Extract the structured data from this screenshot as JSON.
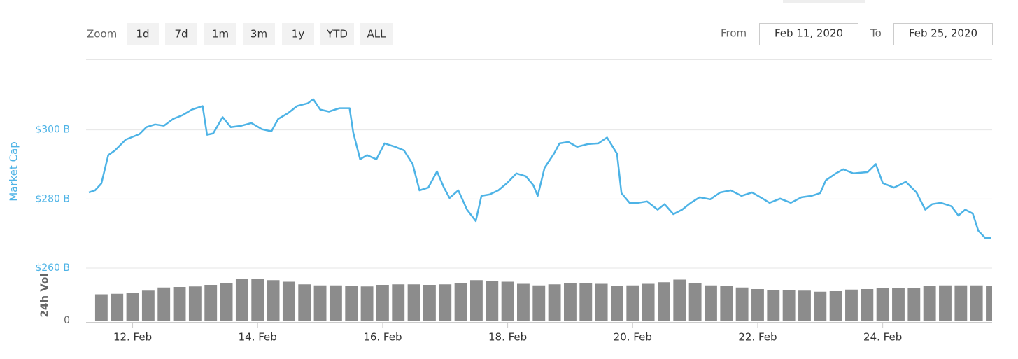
{
  "controls": {
    "zoom_label": "Zoom",
    "zoom_buttons": [
      "1d",
      "7d",
      "1m",
      "3m",
      "1y",
      "YTD",
      "ALL"
    ],
    "from_label": "From",
    "from_value": "Feb 11, 2020",
    "to_label": "To",
    "to_value": "Feb 25, 2020"
  },
  "chart_data": [
    {
      "type": "line",
      "ylabel": "Market Cap",
      "color": "#4db3e6",
      "grid": true,
      "xlim": [
        11.3,
        25.75
      ],
      "ylim": [
        260,
        320
      ],
      "yticks": [
        {
          "value": 260,
          "label": "$260 B"
        },
        {
          "value": 280,
          "label": "$280 B"
        },
        {
          "value": 300,
          "label": "$300 B"
        }
      ],
      "x": [
        11.3,
        11.4,
        11.5,
        11.61,
        11.72,
        11.89,
        12.11,
        12.22,
        12.36,
        12.5,
        12.65,
        12.8,
        12.95,
        13.12,
        13.19,
        13.29,
        13.44,
        13.57,
        13.74,
        13.9,
        14.07,
        14.22,
        14.33,
        14.49,
        14.63,
        14.8,
        14.89,
        15.0,
        15.14,
        15.31,
        15.47,
        15.53,
        15.64,
        15.75,
        15.9,
        16.03,
        16.2,
        16.34,
        16.48,
        16.59,
        16.73,
        16.87,
        16.98,
        17.07,
        17.21,
        17.35,
        17.49,
        17.58,
        17.71,
        17.85,
        17.99,
        18.14,
        18.29,
        18.41,
        18.48,
        18.59,
        18.74,
        18.83,
        18.97,
        19.11,
        19.28,
        19.45,
        19.59,
        19.75,
        19.82,
        19.95,
        20.09,
        20.23,
        20.4,
        20.51,
        20.65,
        20.79,
        20.93,
        21.07,
        21.24,
        21.4,
        21.57,
        21.74,
        21.91,
        22.08,
        22.19,
        22.36,
        22.53,
        22.7,
        22.86,
        23.0,
        23.09,
        23.25,
        23.37,
        23.53,
        23.76,
        23.89,
        24.0,
        24.18,
        24.37,
        24.54,
        24.68,
        24.79,
        24.93,
        25.1,
        25.21,
        25.32,
        25.44,
        25.53,
        25.64,
        25.73
      ],
      "values": [
        281.9,
        282.5,
        284.5,
        292.7,
        294.1,
        297.2,
        298.8,
        300.8,
        301.6,
        301.2,
        303.2,
        304.3,
        305.9,
        306.9,
        298.6,
        299,
        303.7,
        300.8,
        301.2,
        302,
        300.2,
        299.6,
        303.2,
        304.9,
        306.9,
        307.7,
        308.9,
        305.9,
        305.3,
        306.3,
        306.3,
        299.2,
        291.5,
        292.7,
        291.5,
        296.1,
        295.1,
        294.1,
        290.1,
        282.5,
        283.3,
        288,
        283.3,
        280.3,
        282.5,
        276.9,
        273.6,
        280.9,
        281.3,
        282.5,
        284.6,
        287.4,
        286.6,
        284,
        280.9,
        289,
        293.1,
        296.1,
        296.5,
        295.1,
        295.9,
        296.1,
        297.8,
        293.1,
        281.7,
        278.9,
        278.9,
        279.3,
        276.9,
        278.5,
        275.6,
        276.9,
        278.9,
        280.5,
        279.9,
        281.9,
        282.5,
        280.9,
        281.9,
        280.1,
        278.9,
        280.1,
        278.9,
        280.5,
        280.9,
        281.7,
        285.4,
        287.4,
        288.6,
        287.4,
        287.8,
        290.1,
        284.6,
        283.3,
        285,
        281.9,
        276.9,
        278.5,
        278.9,
        277.9,
        275.2,
        276.9,
        275.8,
        270.8,
        268.7,
        268.7
      ]
    },
    {
      "type": "bar",
      "ylabel": "24h Vol",
      "color": "#8c8c8c",
      "xlim": [
        11.3,
        25.75
      ],
      "ylim": [
        0,
        100
      ],
      "yticks": [
        0
      ],
      "xticks": [
        {
          "value": 12,
          "label": "12. Feb"
        },
        {
          "value": 14,
          "label": "14. Feb"
        },
        {
          "value": 16,
          "label": "16. Feb"
        },
        {
          "value": 18,
          "label": "18. Feb"
        },
        {
          "value": 20,
          "label": "20. Feb"
        },
        {
          "value": 22,
          "label": "22. Feb"
        },
        {
          "value": 24,
          "label": "24. Feb"
        }
      ],
      "x": [
        11.5,
        11.75,
        12.0,
        12.25,
        12.5,
        12.75,
        13.0,
        13.25,
        13.5,
        13.75,
        14.0,
        14.25,
        14.5,
        14.75,
        15.0,
        15.25,
        15.5,
        15.75,
        16.0,
        16.25,
        16.5,
        16.75,
        17.0,
        17.25,
        17.5,
        17.75,
        18.0,
        18.25,
        18.5,
        18.75,
        19.0,
        19.25,
        19.5,
        19.75,
        20.0,
        20.25,
        20.5,
        20.75,
        21.0,
        21.25,
        21.5,
        21.75,
        22.0,
        22.25,
        22.5,
        22.75,
        23.0,
        23.25,
        23.5,
        23.75,
        24.0,
        24.25,
        24.5,
        24.75,
        25.0,
        25.25,
        25.5,
        25.75
      ],
      "values": [
        50,
        51,
        53,
        57,
        63,
        64,
        65,
        68,
        72,
        79,
        79,
        77,
        74,
        69,
        67,
        67,
        66,
        65,
        68,
        69,
        69,
        68,
        69,
        72,
        77,
        76,
        74,
        70,
        67,
        69,
        71,
        71,
        70,
        66,
        67,
        70,
        73,
        78,
        71,
        67,
        66,
        63,
        60,
        58,
        58,
        57,
        55,
        56,
        59,
        60,
        62,
        62,
        62,
        66,
        67,
        67,
        67,
        66
      ]
    }
  ]
}
